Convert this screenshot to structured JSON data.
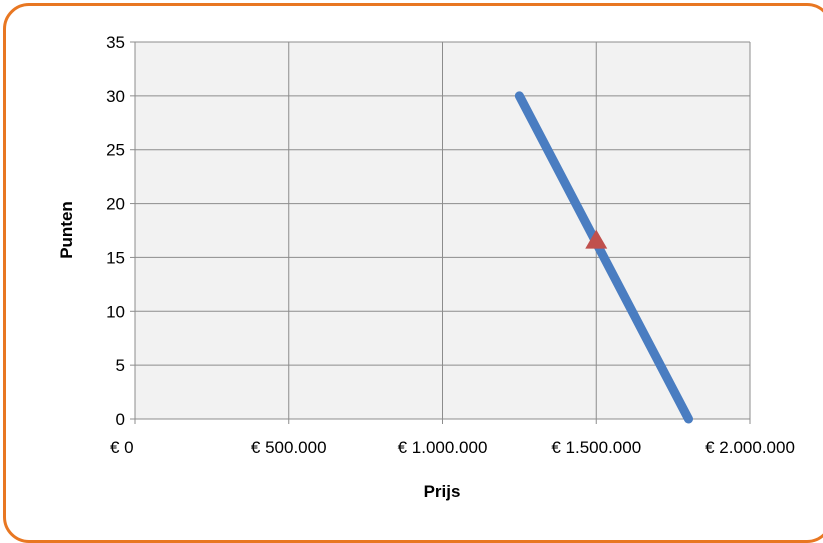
{
  "chart_data": {
    "type": "line",
    "title": "",
    "xlabel": "Prijs",
    "ylabel": "Punten",
    "xlim": [
      0,
      2000000
    ],
    "ylim": [
      0,
      35
    ],
    "x_ticks": [
      0,
      500000,
      1000000,
      1500000,
      2000000
    ],
    "x_tick_labels": [
      "€ 0",
      "€ 500.000",
      "€ 1.000.000",
      "€ 1.500.000",
      "€ 2.000.000"
    ],
    "y_ticks": [
      0,
      5,
      10,
      15,
      20,
      25,
      30,
      35
    ],
    "y_tick_labels": [
      "0",
      "5",
      "10",
      "15",
      "20",
      "25",
      "30",
      "35"
    ],
    "grid": true,
    "legend": "none",
    "series": [
      {
        "type": "line",
        "color": "#4a7dc1",
        "points": [
          {
            "x": 1250000,
            "y": 30
          },
          {
            "x": 1800000,
            "y": 0
          }
        ]
      },
      {
        "type": "scatter",
        "marker": "triangle",
        "color": "#c0504d",
        "points": [
          {
            "x": 1500000,
            "y": 16.7
          }
        ]
      }
    ],
    "colors": {
      "frame": "#e87722",
      "plot_background": "#f2f2f2",
      "grid": "#8c8c8c"
    }
  }
}
